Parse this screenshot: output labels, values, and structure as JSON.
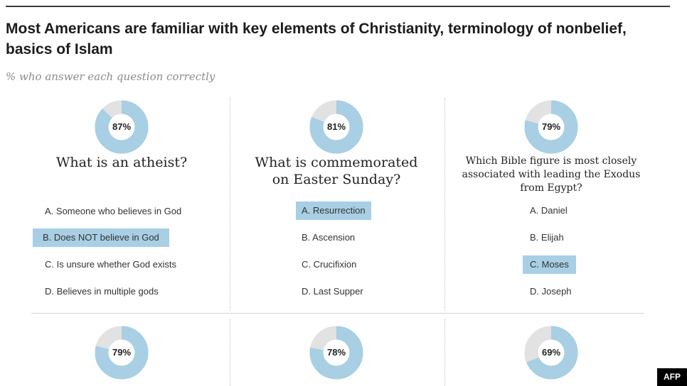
{
  "title": "Most Americans are familiar with key elements of Christianity, terminology of nonbelief, basics of Islam",
  "subtitle": "% who answer each question correctly",
  "credit": "AFP",
  "colors": {
    "correct": "#a8cfe4",
    "remainder": "#e2e2e2"
  },
  "chart_data": {
    "type": "pie",
    "title": "Most Americans are familiar with key elements of Christianity, terminology of nonbelief, basics of Islam",
    "subtitle": "% who answer each question correctly",
    "donuts": [
      {
        "label": "87%",
        "value": 87
      },
      {
        "label": "81%",
        "value": 81
      },
      {
        "label": "79%",
        "value": 79
      },
      {
        "label": "79%",
        "value": 79
      },
      {
        "label": "78%",
        "value": 78
      },
      {
        "label": "69%",
        "value": 69
      }
    ]
  },
  "questions": [
    {
      "question": "What is an atheist?",
      "answers": [
        "A. Someone who believes in God",
        "B. Does NOT believe in God",
        "C. Is unsure whether God exists",
        "D. Believes in multiple gods"
      ],
      "correct_answer": "B. Does NOT believe in God"
    },
    {
      "question_line1": "What is commemorated",
      "question_line2": "on Easter Sunday?",
      "answers": [
        "A. Resurrection",
        "B. Ascension",
        "C. Crucifixion",
        "D. Last Supper"
      ],
      "correct_answer": "A. Resurrection"
    },
    {
      "question_line1": "Which Bible figure is most closely",
      "question_line2": "associated with leading the Exodus",
      "question_line3": "from Egypt?",
      "answers": [
        "A. Daniel",
        "B. Elijah",
        "C. Moses",
        "D. Joseph"
      ],
      "correct_answer": "C. Moses"
    }
  ]
}
